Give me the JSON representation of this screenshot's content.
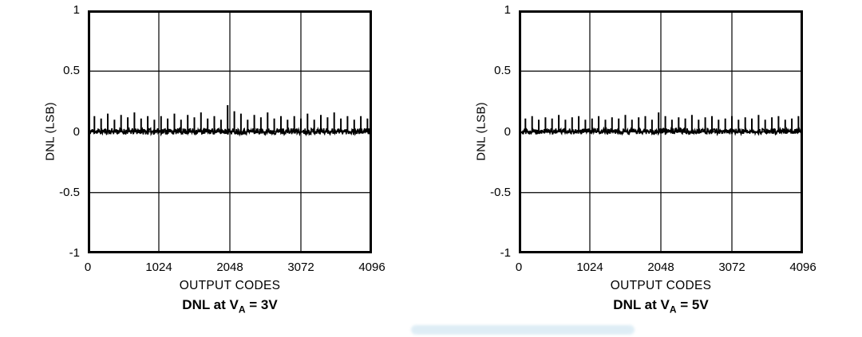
{
  "figure": {
    "background": "#ffffff"
  },
  "colors": {
    "line": "#000000",
    "grid": "#000000",
    "text": "#000000",
    "artifact": "#b8d8ea"
  },
  "chart_data": [
    {
      "type": "line",
      "title": "DNL at VA = 3V",
      "title_prefix": "DNL at V",
      "title_sub": "A",
      "title_suffix": " = 3V",
      "xlabel": "OUTPUT CODES",
      "ylabel": "DNL (LSB)",
      "xlim": [
        0,
        4096
      ],
      "ylim": [
        -1,
        1
      ],
      "xticks": [
        0,
        1024,
        2048,
        3072,
        4096
      ],
      "yticks": [
        1,
        0.5,
        0,
        -0.5,
        -1
      ],
      "grid": true,
      "legend": "none",
      "noise_amplitude_lsb": 0.03,
      "seed": 11,
      "spikes": [
        [
          96,
          0.13
        ],
        [
          192,
          0.11
        ],
        [
          288,
          0.15
        ],
        [
          384,
          0.1
        ],
        [
          480,
          0.14
        ],
        [
          576,
          0.12
        ],
        [
          672,
          0.16
        ],
        [
          768,
          0.11
        ],
        [
          864,
          0.13
        ],
        [
          960,
          0.1
        ],
        [
          1056,
          0.13
        ],
        [
          1152,
          0.11
        ],
        [
          1248,
          0.15
        ],
        [
          1344,
          0.1
        ],
        [
          1440,
          0.14
        ],
        [
          1536,
          0.12
        ],
        [
          1632,
          0.16
        ],
        [
          1728,
          0.11
        ],
        [
          1824,
          0.13
        ],
        [
          1920,
          0.1
        ],
        [
          2016,
          0.22
        ],
        [
          2112,
          0.17
        ],
        [
          2208,
          0.15
        ],
        [
          2304,
          0.1
        ],
        [
          2400,
          0.14
        ],
        [
          2496,
          0.12
        ],
        [
          2592,
          0.16
        ],
        [
          2688,
          0.11
        ],
        [
          2784,
          0.13
        ],
        [
          2880,
          0.1
        ],
        [
          2976,
          0.13
        ],
        [
          3072,
          0.11
        ],
        [
          3168,
          0.15
        ],
        [
          3264,
          0.1
        ],
        [
          3360,
          0.14
        ],
        [
          3456,
          0.12
        ],
        [
          3552,
          0.16
        ],
        [
          3648,
          0.11
        ],
        [
          3744,
          0.13
        ],
        [
          3840,
          0.1
        ],
        [
          3936,
          0.13
        ],
        [
          4032,
          0.11
        ]
      ]
    },
    {
      "type": "line",
      "title": "DNL at VA = 5V",
      "title_prefix": "DNL at V",
      "title_sub": "A",
      "title_suffix": " = 5V",
      "xlabel": "OUTPUT CODES",
      "ylabel": "DNL (LSB)",
      "xlim": [
        0,
        4096
      ],
      "ylim": [
        -1,
        1
      ],
      "xticks": [
        0,
        1024,
        2048,
        3072,
        4096
      ],
      "yticks": [
        1,
        0.5,
        0,
        -0.5,
        -1
      ],
      "grid": true,
      "legend": "none",
      "noise_amplitude_lsb": 0.028,
      "seed": 29,
      "spikes": [
        [
          96,
          0.11
        ],
        [
          192,
          0.13
        ],
        [
          288,
          0.1
        ],
        [
          384,
          0.12
        ],
        [
          480,
          0.11
        ],
        [
          576,
          0.14
        ],
        [
          672,
          0.1
        ],
        [
          768,
          0.12
        ],
        [
          864,
          0.13
        ],
        [
          960,
          0.1
        ],
        [
          1056,
          0.11
        ],
        [
          1152,
          0.13
        ],
        [
          1248,
          0.1
        ],
        [
          1344,
          0.12
        ],
        [
          1440,
          0.11
        ],
        [
          1536,
          0.14
        ],
        [
          1632,
          0.1
        ],
        [
          1728,
          0.12
        ],
        [
          1824,
          0.13
        ],
        [
          1920,
          0.1
        ],
        [
          2016,
          0.16
        ],
        [
          2112,
          0.13
        ],
        [
          2208,
          0.1
        ],
        [
          2304,
          0.12
        ],
        [
          2400,
          0.11
        ],
        [
          2496,
          0.14
        ],
        [
          2592,
          0.1
        ],
        [
          2688,
          0.12
        ],
        [
          2784,
          0.13
        ],
        [
          2880,
          0.1
        ],
        [
          2976,
          0.11
        ],
        [
          3072,
          0.13
        ],
        [
          3168,
          0.1
        ],
        [
          3264,
          0.12
        ],
        [
          3360,
          0.11
        ],
        [
          3456,
          0.14
        ],
        [
          3552,
          0.1
        ],
        [
          3648,
          0.12
        ],
        [
          3744,
          0.13
        ],
        [
          3840,
          0.1
        ],
        [
          3936,
          0.11
        ],
        [
          4032,
          0.13
        ]
      ]
    }
  ]
}
